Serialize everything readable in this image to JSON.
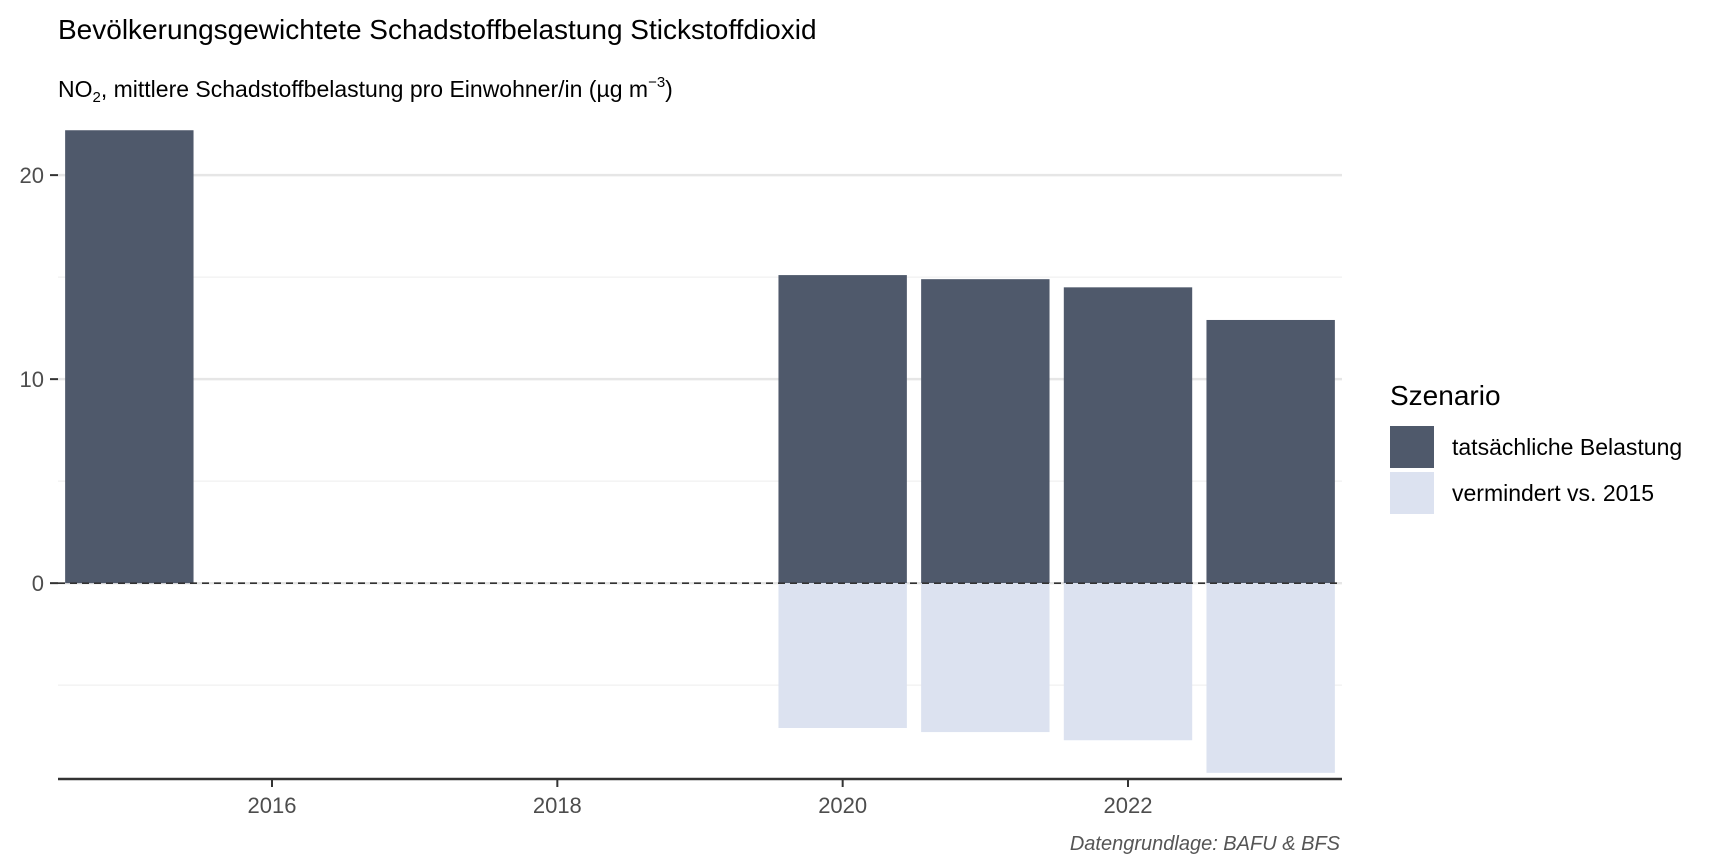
{
  "chart_data": {
    "type": "bar",
    "title": "Bevölkerungsgewichtete Schadstoffbelastung Stickstoffdioxid",
    "subtitle": {
      "prefix": "NO",
      "sub": "2",
      "middle": ", mittlere Schadstoffbelastung pro Einwohner/in (µg m",
      "sup": "−3",
      "suffix": ")"
    },
    "caption": "Datengrundlage: BAFU & BFS",
    "xlabel": "",
    "ylabel": "",
    "x_ticks": [
      2016,
      2018,
      2020,
      2022
    ],
    "y_ticks": [
      0,
      10,
      20
    ],
    "xlim": [
      2014.5,
      2023.5
    ],
    "ylim": [
      -9.6,
      22.8
    ],
    "grid": true,
    "reference_line": {
      "y": 0,
      "style": "dashed"
    },
    "legend": {
      "title": "Szenario",
      "position": "right"
    },
    "series": [
      {
        "name": "tatsächliche Belastung",
        "color": "#4f596b",
        "points": [
          {
            "x": 2015,
            "y": 22.2
          },
          {
            "x": 2020,
            "y": 15.1
          },
          {
            "x": 2021,
            "y": 14.9
          },
          {
            "x": 2022,
            "y": 14.5
          },
          {
            "x": 2023,
            "y": 12.9
          }
        ]
      },
      {
        "name": "vermindert vs. 2015",
        "color": "#dce2f0",
        "points": [
          {
            "x": 2020,
            "y": -7.1
          },
          {
            "x": 2021,
            "y": -7.3
          },
          {
            "x": 2022,
            "y": -7.7
          },
          {
            "x": 2023,
            "y": -9.3
          }
        ]
      }
    ]
  }
}
